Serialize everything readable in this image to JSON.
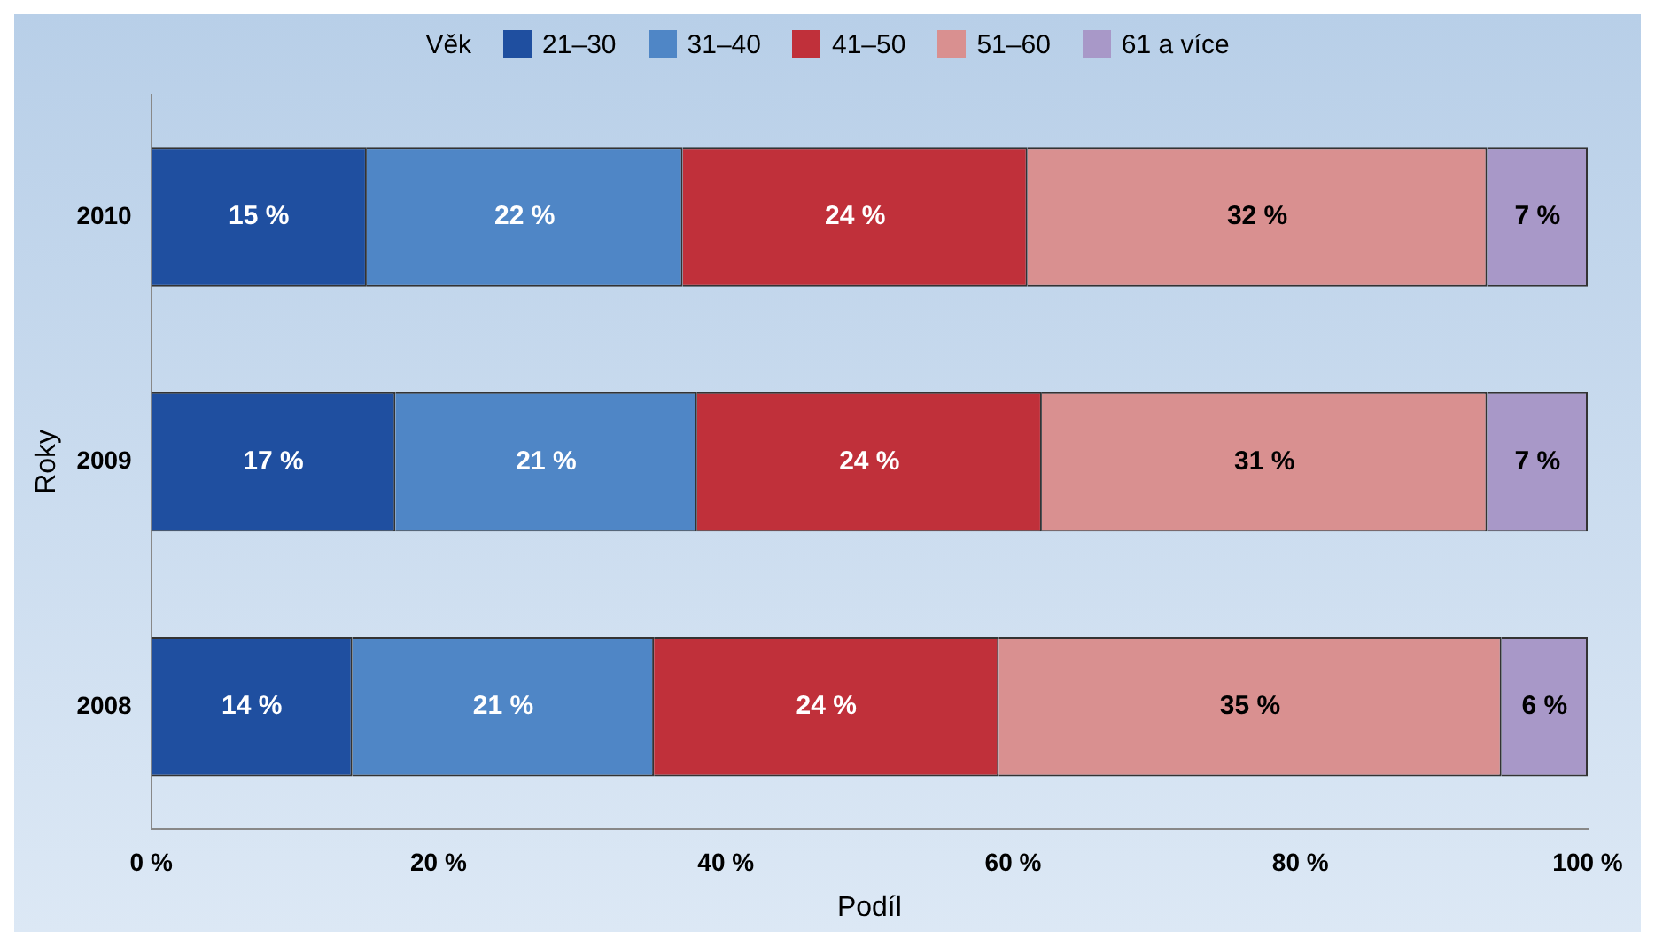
{
  "chart_data": {
    "type": "bar",
    "orientation": "horizontal",
    "stacked": true,
    "xlabel": "Podíl",
    "ylabel": "Roky",
    "legend_title": "Věk",
    "legend": "top",
    "categories": [
      "2010",
      "2009",
      "2008"
    ],
    "xlim": [
      0,
      100
    ],
    "xticks": [
      {
        "value": 0,
        "label": "0 %"
      },
      {
        "value": 20,
        "label": "20 %"
      },
      {
        "value": 40,
        "label": "40 %"
      },
      {
        "value": 60,
        "label": "60 %"
      },
      {
        "value": 80,
        "label": "80 %"
      },
      {
        "value": 100,
        "label": "100 %"
      }
    ],
    "grid": false,
    "series": [
      {
        "name": "21–30",
        "color": "#1f4fa0",
        "values": [
          15,
          17,
          14
        ],
        "value_labels": [
          "15 %",
          "17 %",
          "14 %"
        ]
      },
      {
        "name": "31–40",
        "color": "#4f86c6",
        "values": [
          22,
          21,
          21
        ],
        "value_labels": [
          "22 %",
          "21 %",
          "21 %"
        ]
      },
      {
        "name": "41–50",
        "color": "#c0303a",
        "values": [
          24,
          24,
          24
        ],
        "value_labels": [
          "24 %",
          "24 %",
          "24 %"
        ]
      },
      {
        "name": "51–60",
        "color": "#d99090",
        "values": [
          32,
          31,
          35
        ],
        "value_labels": [
          "32 %",
          "31 %",
          "35 %"
        ]
      },
      {
        "name": "61 a více",
        "color": "#a898c8",
        "values": [
          7,
          7,
          6
        ],
        "value_labels": [
          "7 %",
          "7 %",
          "6 %"
        ]
      }
    ]
  }
}
